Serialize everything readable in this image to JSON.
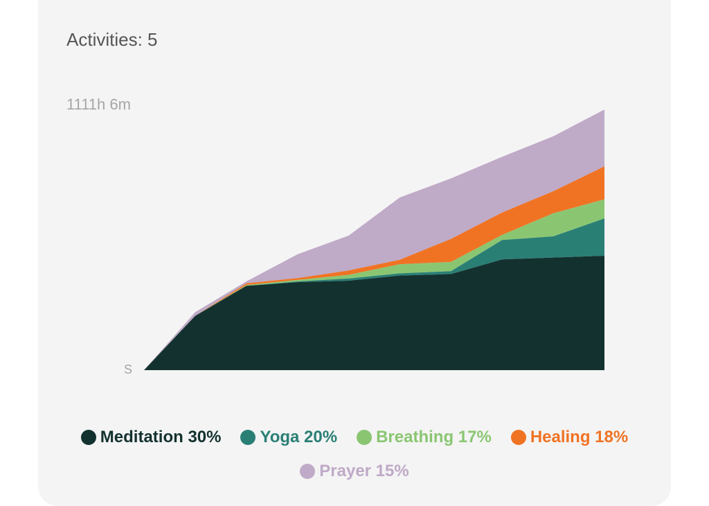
{
  "header": {
    "activities_label": "Activities: 5"
  },
  "chart_data": {
    "type": "area",
    "stacked": true,
    "y_max_label": "1111h 6m",
    "y_min_label": "S",
    "x": [
      0,
      1,
      2,
      3,
      4,
      5,
      6,
      7,
      8,
      9
    ],
    "series": [
      {
        "name": "Meditation",
        "percent": "30%",
        "color": "#13312f",
        "values": [
          0,
          148,
          230,
          240,
          244,
          258,
          262,
          302,
          307,
          312
        ]
      },
      {
        "name": "Yoga",
        "percent": "20%",
        "color": "#2a7f75",
        "values": [
          0,
          0,
          0,
          2,
          6,
          6,
          8,
          53,
          58,
          102
        ]
      },
      {
        "name": "Breathing",
        "percent": "17%",
        "color": "#8ac672",
        "values": [
          0,
          0,
          2,
          4,
          10,
          25,
          25,
          14,
          63,
          52
        ]
      },
      {
        "name": "Healing",
        "percent": "18%",
        "color": "#f07324",
        "values": [
          0,
          0,
          5,
          5,
          12,
          12,
          63,
          61,
          60,
          90
        ]
      },
      {
        "name": "Prayer",
        "percent": "15%",
        "color": "#bfaac7",
        "values": [
          0,
          10,
          5,
          65,
          95,
          170,
          165,
          152,
          150,
          155
        ]
      }
    ],
    "y_total_max": 1111.1,
    "axis_units": "hours"
  }
}
